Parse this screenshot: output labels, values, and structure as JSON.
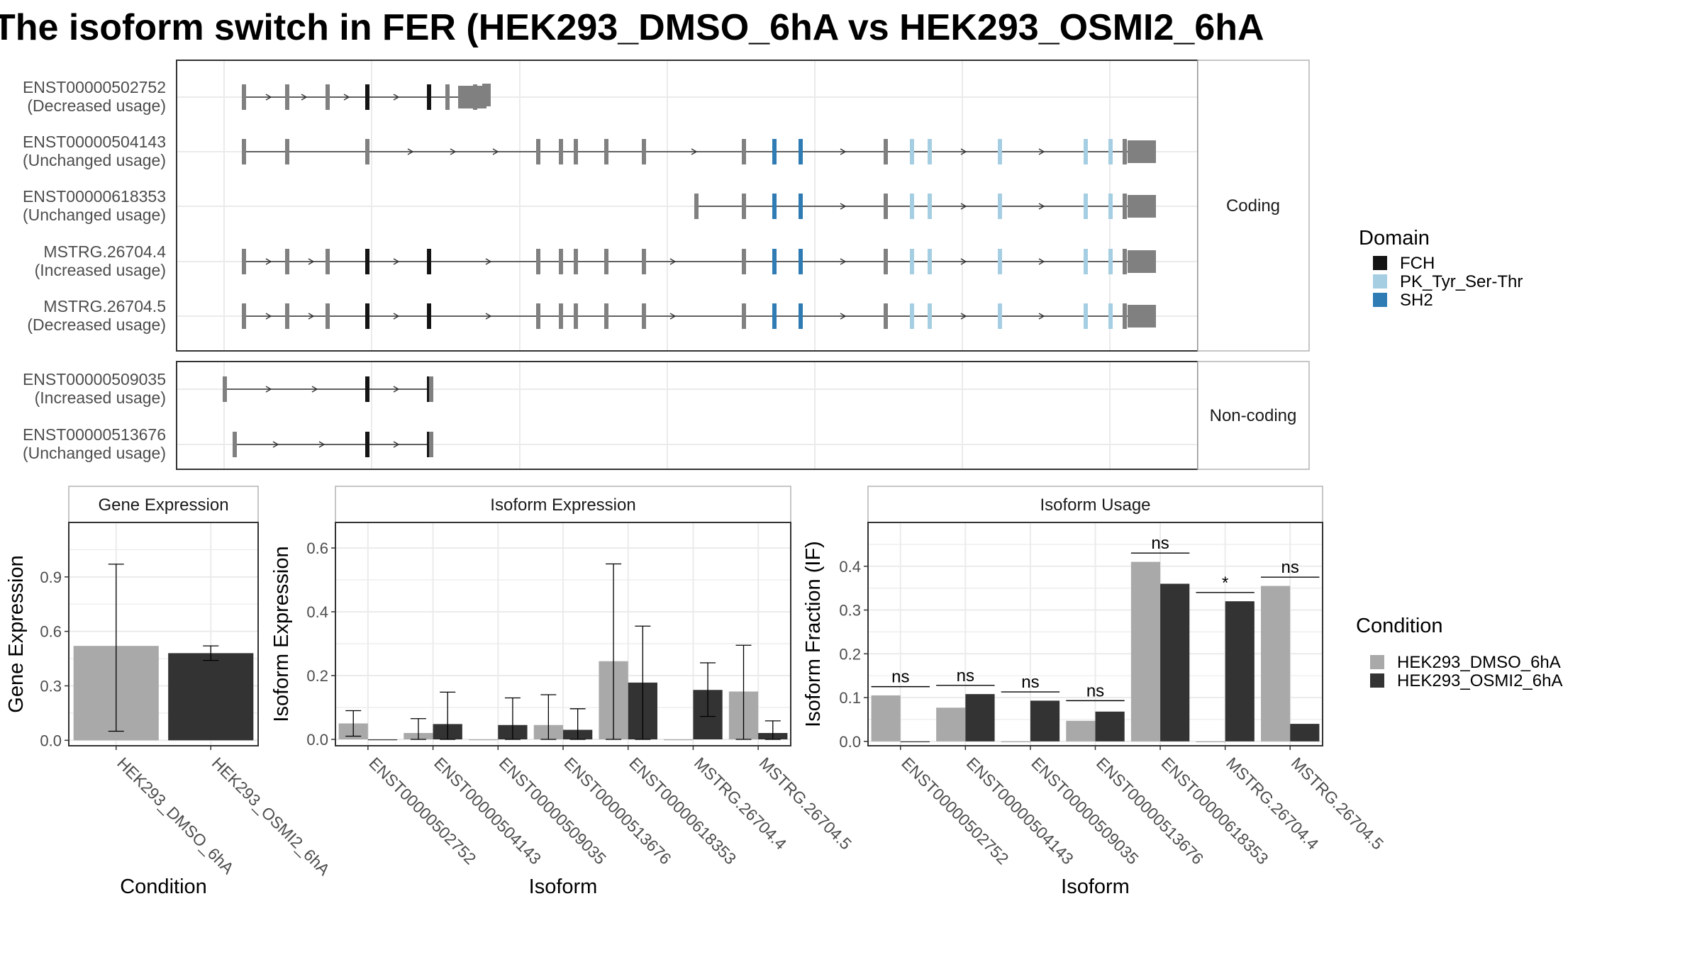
{
  "title": "The isoform switch in FER (HEK293_DMSO_6hA vs HEK293_OSMI2_6hA",
  "colors": {
    "dmso": "#a9a9a9",
    "osmi": "#333333",
    "exon": "#808080",
    "FCH": "#141414",
    "PK_Tyr_Ser-Thr": "#a6cee3",
    "SH2": "#2f7bb4",
    "grid": "#ebebeb",
    "frame": "#333333",
    "strip_border": "#b3b3b3",
    "axis_text": "#4d4d4d"
  },
  "structure": {
    "coding_label": "Coding",
    "noncoding_label": "Non-coding",
    "coding_isoforms": [
      {
        "id": "ENST00000502752",
        "usage": "(Decreased usage)"
      },
      {
        "id": "ENST00000504143",
        "usage": "(Unchanged usage)"
      },
      {
        "id": "ENST00000618353",
        "usage": "(Unchanged usage)"
      },
      {
        "id": "MSTRG.26704.4",
        "usage": "(Increased usage)"
      },
      {
        "id": "MSTRG.26704.5",
        "usage": "(Decreased usage)"
      }
    ],
    "noncoding_isoforms": [
      {
        "id": "ENST00000509035",
        "usage": "(Increased usage)"
      },
      {
        "id": "ENST00000513676",
        "usage": "(Unchanged usage)"
      }
    ]
  },
  "domain_legend": {
    "title": "Domain",
    "items": [
      {
        "name": "FCH",
        "color": "#141414"
      },
      {
        "name": "PK_Tyr_Ser-Thr",
        "color": "#a6cee3"
      },
      {
        "name": "SH2",
        "color": "#2f7bb4"
      }
    ]
  },
  "condition_legend": {
    "title": "Condition",
    "items": [
      {
        "name": "HEK293_DMSO_6hA",
        "color": "#a9a9a9"
      },
      {
        "name": "HEK293_OSMI2_6hA",
        "color": "#333333"
      }
    ]
  },
  "chart_data": [
    {
      "type": "bar",
      "title": "Gene Expression",
      "xlabel": "Condition",
      "ylabel": "Gene Expression",
      "categories": [
        "HEK293_DMSO_6hA",
        "HEK293_OSMI2_6hA"
      ],
      "ylim": [
        -0.03,
        1.2
      ],
      "yticks": [
        0.0,
        0.3,
        0.6,
        0.9
      ],
      "ytick_labels": [
        "0.0",
        "0.3",
        "0.6",
        "0.9"
      ],
      "values": [
        0.52,
        0.48
      ],
      "errors": [
        [
          0.05,
          0.97
        ],
        [
          0.44,
          0.52
        ]
      ]
    },
    {
      "type": "bar",
      "title": "Isoform Expression",
      "xlabel": "Isoform",
      "ylabel": "Isoform Expression",
      "categories": [
        "ENST00000502752",
        "ENST00000504143",
        "ENST00000509035",
        "ENST00000513676",
        "ENST00000618353",
        "MSTRG.26704.4",
        "MSTRG.26704.5"
      ],
      "ylim": [
        -0.02,
        0.68
      ],
      "yticks": [
        0.0,
        0.2,
        0.4,
        0.6
      ],
      "ytick_labels": [
        "0.0",
        "0.2",
        "0.4",
        "0.6"
      ],
      "series": [
        {
          "name": "HEK293_DMSO_6hA",
          "values": [
            0.05,
            0.02,
            0.0,
            0.045,
            0.245,
            0.0,
            0.15
          ],
          "errors": [
            [
              0.01,
              0.09
            ],
            [
              0.0,
              0.065
            ],
            null,
            [
              0.0,
              0.14
            ],
            [
              0.0,
              0.55
            ],
            null,
            [
              0.0,
              0.295
            ]
          ]
        },
        {
          "name": "HEK293_OSMI2_6hA",
          "values": [
            0.0,
            0.048,
            0.045,
            0.03,
            0.178,
            0.155,
            0.02
          ],
          "errors": [
            null,
            [
              0.0,
              0.148
            ],
            [
              0.0,
              0.13
            ],
            [
              0.0,
              0.096
            ],
            [
              0.0,
              0.355
            ],
            [
              0.072,
              0.24
            ],
            [
              0.0,
              0.058
            ]
          ]
        }
      ]
    },
    {
      "type": "bar",
      "title": "Isoform Usage",
      "xlabel": "Isoform",
      "ylabel": "Isoform Fraction (IF)",
      "categories": [
        "ENST00000502752",
        "ENST00000504143",
        "ENST00000509035",
        "ENST00000513676",
        "ENST00000618353",
        "MSTRG.26704.4",
        "MSTRG.26704.5"
      ],
      "ylim": [
        -0.01,
        0.5
      ],
      "yticks": [
        0.0,
        0.1,
        0.2,
        0.3,
        0.4
      ],
      "ytick_labels": [
        "0.0",
        "0.1",
        "0.2",
        "0.3",
        "0.4"
      ],
      "series": [
        {
          "name": "HEK293_DMSO_6hA",
          "values": [
            0.105,
            0.077,
            0.0,
            0.047,
            0.41,
            0.0,
            0.355
          ]
        },
        {
          "name": "HEK293_OSMI2_6hA",
          "values": [
            0.0,
            0.108,
            0.093,
            0.068,
            0.36,
            0.32,
            0.04
          ]
        }
      ],
      "significance": [
        {
          "category": "ENST00000502752",
          "label": "ns",
          "y": 0.125
        },
        {
          "category": "ENST00000504143",
          "label": "ns",
          "y": 0.128
        },
        {
          "category": "ENST00000509035",
          "label": "ns",
          "y": 0.113
        },
        {
          "category": "ENST00000513676",
          "label": "ns",
          "y": 0.093
        },
        {
          "category": "ENST00000618353",
          "label": "ns",
          "y": 0.43
        },
        {
          "category": "MSTRG.26704.4",
          "label": "*",
          "y": 0.34
        },
        {
          "category": "MSTRG.26704.5",
          "label": "ns",
          "y": 0.375
        }
      ]
    }
  ]
}
